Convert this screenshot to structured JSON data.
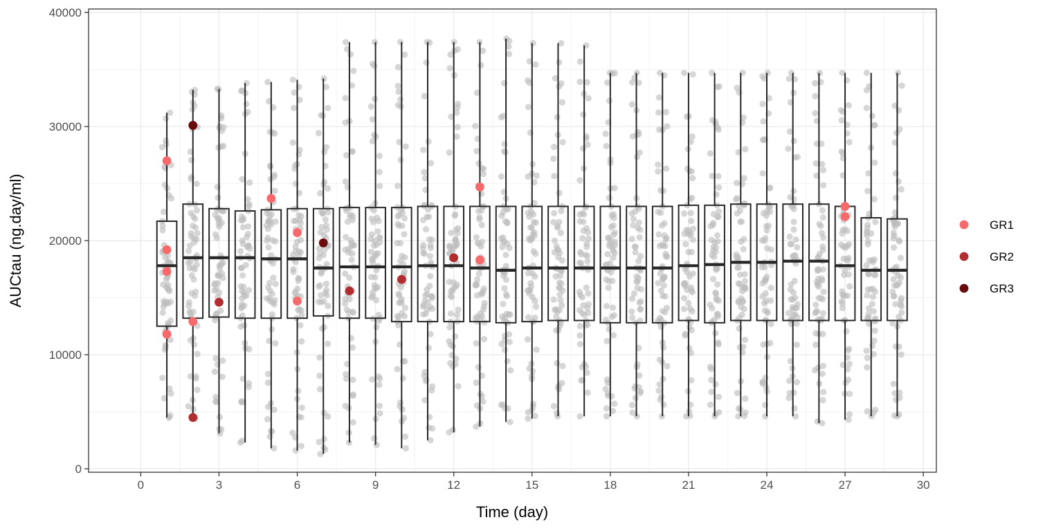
{
  "chart_data": {
    "type": "box",
    "title": "",
    "xlabel": "Time (day)",
    "ylabel": "AUCtau (ng.day/ml)",
    "xlim": [
      -2,
      30.5
    ],
    "ylim": [
      -300,
      40300
    ],
    "x_ticks": [
      0,
      3,
      6,
      9,
      12,
      15,
      18,
      21,
      24,
      27,
      30
    ],
    "y_ticks": [
      0,
      10000,
      20000,
      30000,
      40000
    ],
    "x_tick_labels": [
      "0",
      "3",
      "6",
      "9",
      "12",
      "15",
      "18",
      "21",
      "24",
      "27",
      "30"
    ],
    "y_tick_labels": [
      "0",
      "10000",
      "20000",
      "30000",
      "40000"
    ],
    "grid": true,
    "legend_position": "right",
    "colors": {
      "panel_border": "#333333",
      "grid_major": "#ebebeb",
      "grid_minor": "#f3f3f3",
      "box": "#262626",
      "individual_points": "#bdbdbd"
    },
    "boxes": [
      {
        "x": 1,
        "ymin": 4500,
        "q1": 12500,
        "median": 17800,
        "q3": 21700,
        "ymax": 31200
      },
      {
        "x": 2,
        "ymin": 4400,
        "q1": 13200,
        "median": 18500,
        "q3": 23200,
        "ymax": 33200
      },
      {
        "x": 3,
        "ymin": 3100,
        "q1": 13300,
        "median": 18500,
        "q3": 22800,
        "ymax": 33300
      },
      {
        "x": 4,
        "ymin": 2300,
        "q1": 13200,
        "median": 18500,
        "q3": 22600,
        "ymax": 33800
      },
      {
        "x": 5,
        "ymin": 1800,
        "q1": 13200,
        "median": 18400,
        "q3": 22700,
        "ymax": 33900
      },
      {
        "x": 6,
        "ymin": 1600,
        "q1": 13200,
        "median": 18400,
        "q3": 22800,
        "ymax": 34100
      },
      {
        "x": 7,
        "ymin": 1300,
        "q1": 13400,
        "median": 17600,
        "q3": 22800,
        "ymax": 34200
      },
      {
        "x": 8,
        "ymin": 2300,
        "q1": 13200,
        "median": 17700,
        "q3": 22900,
        "ymax": 37400
      },
      {
        "x": 9,
        "ymin": 2100,
        "q1": 13200,
        "median": 17700,
        "q3": 22900,
        "ymax": 37400
      },
      {
        "x": 10,
        "ymin": 1800,
        "q1": 12900,
        "median": 17700,
        "q3": 22900,
        "ymax": 37400
      },
      {
        "x": 11,
        "ymin": 2500,
        "q1": 12900,
        "median": 17800,
        "q3": 23000,
        "ymax": 37400
      },
      {
        "x": 12,
        "ymin": 3200,
        "q1": 12900,
        "median": 17800,
        "q3": 23000,
        "ymax": 37400
      },
      {
        "x": 13,
        "ymin": 3700,
        "q1": 12900,
        "median": 17600,
        "q3": 23000,
        "ymax": 37400
      },
      {
        "x": 14,
        "ymin": 4100,
        "q1": 12800,
        "median": 17400,
        "q3": 23000,
        "ymax": 37700
      },
      {
        "x": 15,
        "ymin": 4400,
        "q1": 12900,
        "median": 17600,
        "q3": 23000,
        "ymax": 37300
      },
      {
        "x": 16,
        "ymin": 4600,
        "q1": 13000,
        "median": 17600,
        "q3": 23000,
        "ymax": 37300
      },
      {
        "x": 17,
        "ymin": 4600,
        "q1": 13000,
        "median": 17600,
        "q3": 23000,
        "ymax": 37100
      },
      {
        "x": 18,
        "ymin": 4600,
        "q1": 12800,
        "median": 17600,
        "q3": 23000,
        "ymax": 34700
      },
      {
        "x": 19,
        "ymin": 4600,
        "q1": 12800,
        "median": 17600,
        "q3": 23000,
        "ymax": 34700
      },
      {
        "x": 20,
        "ymin": 4600,
        "q1": 12800,
        "median": 17600,
        "q3": 23000,
        "ymax": 34700
      },
      {
        "x": 21,
        "ymin": 4600,
        "q1": 13000,
        "median": 17800,
        "q3": 23100,
        "ymax": 34700
      },
      {
        "x": 22,
        "ymin": 4600,
        "q1": 12800,
        "median": 17900,
        "q3": 23100,
        "ymax": 34700
      },
      {
        "x": 23,
        "ymin": 4600,
        "q1": 13000,
        "median": 18100,
        "q3": 23200,
        "ymax": 34700
      },
      {
        "x": 24,
        "ymin": 4600,
        "q1": 13000,
        "median": 18100,
        "q3": 23200,
        "ymax": 34700
      },
      {
        "x": 25,
        "ymin": 4600,
        "q1": 13000,
        "median": 18200,
        "q3": 23200,
        "ymax": 34700
      },
      {
        "x": 26,
        "ymin": 4000,
        "q1": 13000,
        "median": 18200,
        "q3": 23200,
        "ymax": 34700
      },
      {
        "x": 27,
        "ymin": 4300,
        "q1": 13000,
        "median": 17800,
        "q3": 23000,
        "ymax": 34700
      },
      {
        "x": 28,
        "ymin": 4600,
        "q1": 13000,
        "median": 17400,
        "q3": 22000,
        "ymax": 34700
      },
      {
        "x": 29,
        "ymin": 4600,
        "q1": 13000,
        "median": 17400,
        "q3": 21900,
        "ymax": 34700
      }
    ],
    "highlighted": [
      {
        "group": "GR1",
        "x": 1,
        "y": 27000
      },
      {
        "group": "GR1",
        "x": 1,
        "y": 19200
      },
      {
        "group": "GR1",
        "x": 1,
        "y": 17300
      },
      {
        "group": "GR1",
        "x": 1,
        "y": 11800
      },
      {
        "group": "GR1",
        "x": 2,
        "y": 12900
      },
      {
        "group": "GR1",
        "x": 5,
        "y": 23700
      },
      {
        "group": "GR1",
        "x": 6,
        "y": 20700
      },
      {
        "group": "GR1",
        "x": 6,
        "y": 14700
      },
      {
        "group": "GR1",
        "x": 13,
        "y": 24700
      },
      {
        "group": "GR1",
        "x": 13,
        "y": 18300
      },
      {
        "group": "GR1",
        "x": 27,
        "y": 23000
      },
      {
        "group": "GR1",
        "x": 27,
        "y": 22100
      },
      {
        "group": "GR2",
        "x": 2,
        "y": 4500
      },
      {
        "group": "GR2",
        "x": 3,
        "y": 14600
      },
      {
        "group": "GR2",
        "x": 8,
        "y": 15600
      },
      {
        "group": "GR2",
        "x": 10,
        "y": 16600
      },
      {
        "group": "GR2",
        "x": 12,
        "y": 18500
      },
      {
        "group": "GR3",
        "x": 2,
        "y": 30100
      },
      {
        "group": "GR3",
        "x": 7,
        "y": 19800
      }
    ],
    "legend": [
      {
        "name": "GR1",
        "color": "#f8696b"
      },
      {
        "name": "GR2",
        "color": "#b22d2f"
      },
      {
        "name": "GR3",
        "color": "#6b0a0a"
      }
    ]
  }
}
